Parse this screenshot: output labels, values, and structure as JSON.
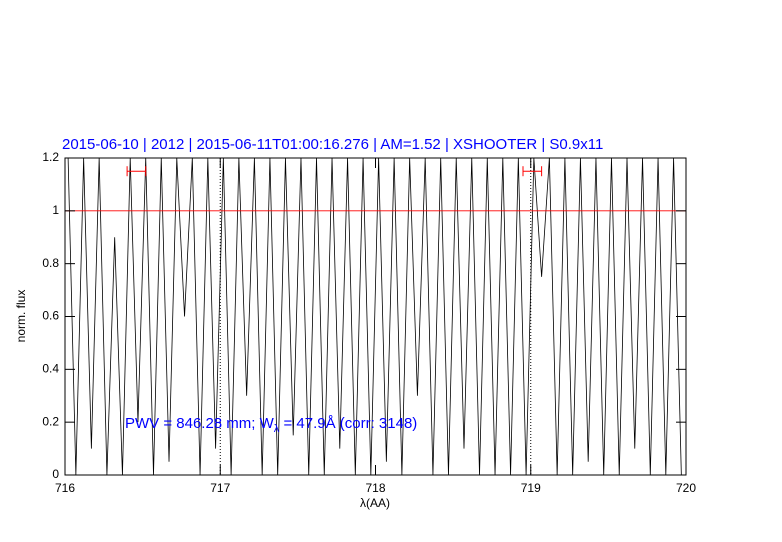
{
  "chart_data": {
    "type": "line",
    "title": "2015-06-10 | 2012 | 2015-06-11T01:00:16.276 | AM=1.52 | XSHOOTER | S0.9x11",
    "xlabel": "λ(AA)",
    "ylabel": "norm. flux",
    "annotation": [
      "PWV = 846.28 mm; W",
      "λ",
      " = 47.9Å (corr: 3148)"
    ],
    "xlim": [
      716,
      720
    ],
    "ylim": [
      0,
      1.2
    ],
    "xticks": [
      716,
      717,
      718,
      719,
      720
    ],
    "yticks": [
      0,
      0.2,
      0.4,
      0.6,
      0.8,
      1,
      1.2
    ],
    "series": [
      {
        "color": "#000000",
        "x": [
          716.02,
          716.07,
          716.12,
          716.17,
          716.22,
          716.27,
          716.32,
          716.37,
          716.42,
          716.47,
          716.52,
          716.57,
          716.62,
          716.67,
          716.72,
          716.77,
          716.82,
          716.87,
          716.92,
          716.97,
          717.02,
          717.07,
          717.12,
          717.17,
          717.22,
          717.27,
          717.32,
          717.37,
          717.42,
          717.47,
          717.52,
          717.57,
          717.62,
          717.67,
          717.72,
          717.77,
          717.82,
          717.87,
          717.92,
          717.97,
          718.02,
          718.07,
          718.12,
          718.17,
          718.22,
          718.27,
          718.32,
          718.37,
          718.42,
          718.47,
          718.52,
          718.57,
          718.62,
          718.67,
          718.72,
          718.77,
          718.82,
          718.87,
          718.92,
          718.97,
          719.02,
          719.07,
          719.12,
          719.17,
          719.22,
          719.27,
          719.32,
          719.37,
          719.42,
          719.47,
          719.52,
          719.57,
          719.62,
          719.67,
          719.72,
          719.77,
          719.82,
          719.87,
          719.92,
          719.97
        ],
        "values": [
          1.2,
          0.0,
          1.2,
          0.1,
          1.2,
          0.0,
          0.9,
          0.0,
          1.2,
          0.2,
          1.2,
          0.0,
          1.2,
          0.05,
          1.2,
          0.6,
          1.2,
          0.0,
          1.2,
          0.1,
          1.2,
          0.0,
          1.2,
          0.3,
          1.2,
          0.0,
          1.2,
          0.0,
          1.2,
          0.15,
          1.2,
          0.0,
          1.2,
          0.0,
          1.2,
          0.1,
          1.2,
          0.0,
          1.2,
          0.0,
          1.2,
          0.05,
          1.2,
          0.0,
          1.2,
          0.3,
          1.2,
          0.0,
          1.2,
          0.0,
          1.2,
          0.1,
          1.2,
          0.0,
          1.2,
          0.0,
          1.2,
          0.0,
          1.2,
          0.0,
          1.2,
          0.75,
          1.2,
          0.0,
          1.2,
          0.0,
          1.2,
          0.05,
          1.2,
          0.0,
          1.2,
          0.0,
          1.2,
          0.1,
          1.2,
          0.0,
          1.2,
          0.0,
          1.2,
          0.0
        ]
      }
    ],
    "reference_line": {
      "y": 1,
      "color": "#ff0000"
    },
    "dotted_vlines": [
      717,
      719
    ],
    "error_markers": {
      "color": "#ff0000",
      "items": [
        {
          "x": [
            716.4,
            716.52
          ],
          "y": 1.15
        },
        {
          "x": [
            718.95,
            719.07
          ],
          "y": 1.15
        }
      ]
    }
  }
}
